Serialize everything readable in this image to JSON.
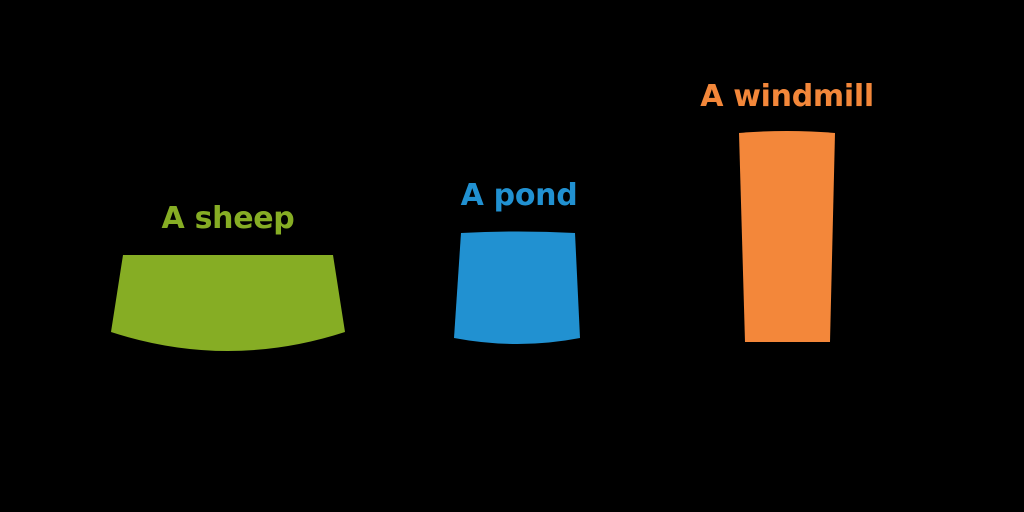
{
  "items": [
    {
      "id": "sheep",
      "label": "A sheep",
      "color": "#86ad24"
    },
    {
      "id": "pond",
      "label": "A pond",
      "color": "#2191d1"
    },
    {
      "id": "windmill",
      "label": "A windmill",
      "color": "#f3873a"
    }
  ]
}
